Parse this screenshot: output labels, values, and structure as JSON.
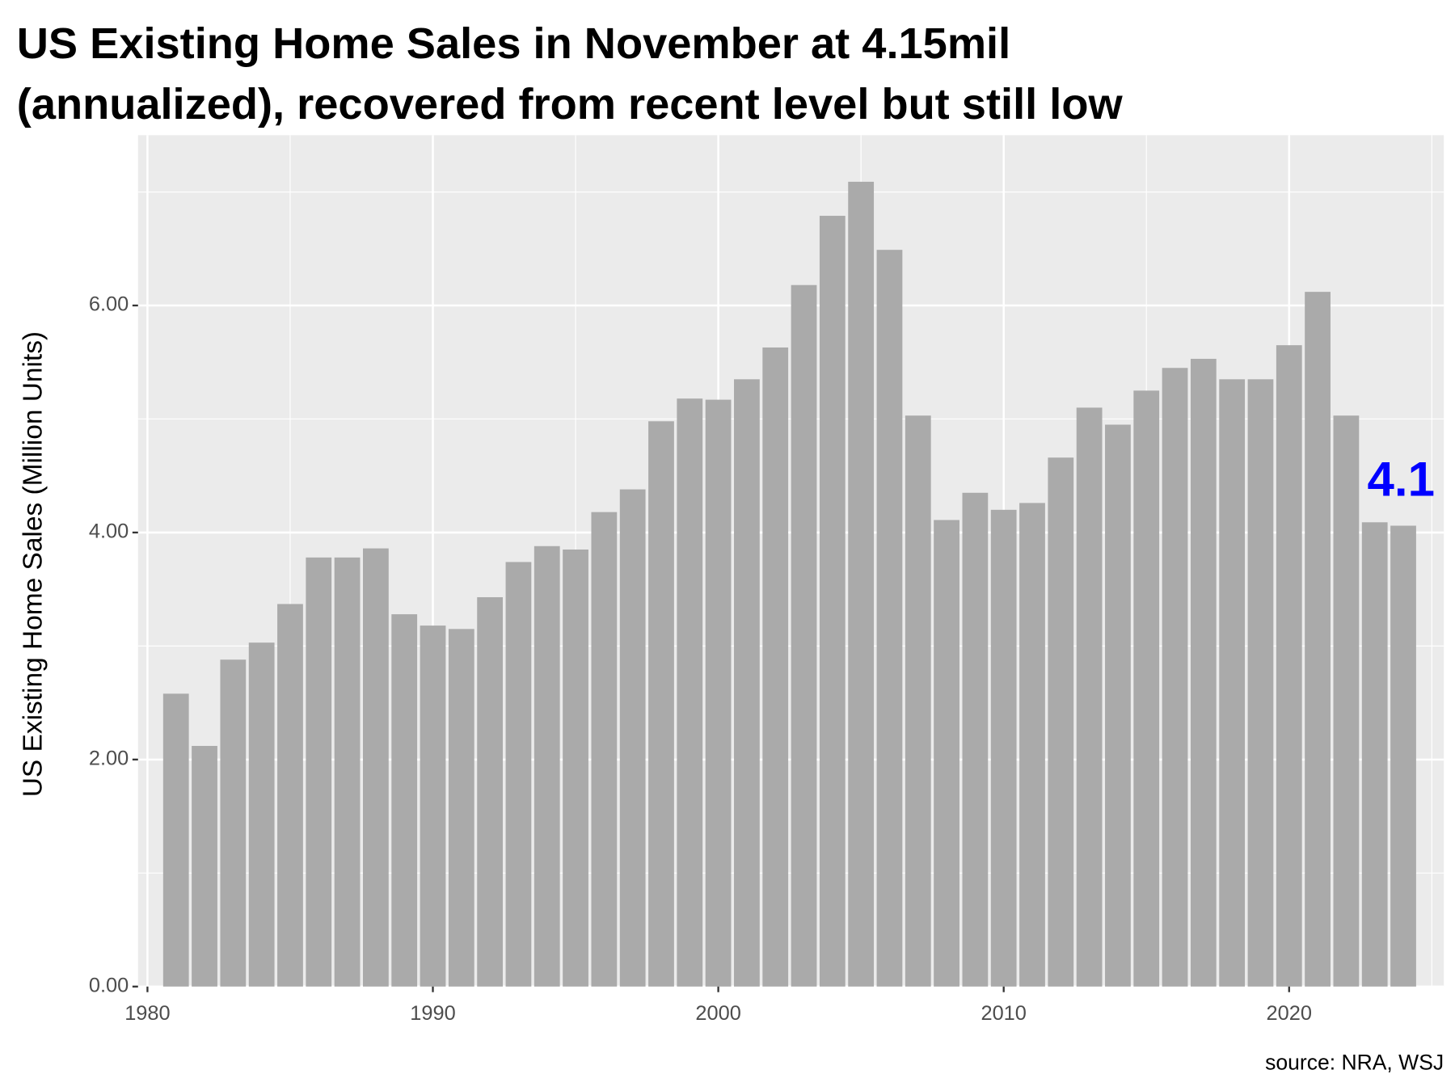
{
  "chart_data": {
    "type": "bar",
    "title": [
      "US Existing Home Sales in November at 4.15mil",
      "(annualized), recovered from recent level but still low"
    ],
    "y_label": "US Existing Home Sales (Million Units)",
    "caption": "source: NRA, WSJ",
    "annotation": "4.1",
    "annotation_color": "#0000ff",
    "color": "#aaaaaa",
    "x": [
      1981,
      1982,
      1983,
      1984,
      1985,
      1986,
      1987,
      1988,
      1989,
      1990,
      1991,
      1992,
      1993,
      1994,
      1995,
      1996,
      1997,
      1998,
      1999,
      2000,
      2001,
      2002,
      2003,
      2004,
      2005,
      2006,
      2007,
      2008,
      2009,
      2010,
      2011,
      2012,
      2013,
      2014,
      2015,
      2016,
      2017,
      2018,
      2019,
      2020,
      2021,
      2022,
      2023,
      2024
    ],
    "values": [
      2.58,
      2.12,
      2.88,
      3.03,
      3.37,
      3.78,
      3.78,
      3.86,
      3.28,
      3.18,
      3.15,
      3.43,
      3.74,
      3.88,
      3.85,
      4.18,
      4.38,
      4.98,
      5.18,
      5.17,
      5.35,
      5.63,
      6.18,
      6.79,
      7.09,
      6.49,
      5.03,
      4.11,
      4.35,
      4.2,
      4.26,
      4.66,
      5.1,
      4.95,
      5.25,
      5.45,
      5.53,
      5.35,
      5.35,
      5.65,
      6.12,
      5.03,
      4.09,
      4.06
    ],
    "xlim": [
      1979.67,
      2025.42
    ],
    "xticks": [
      1980,
      1990,
      2000,
      2010,
      2020
    ],
    "x_minor_ticks": [
      1985,
      1995,
      2005,
      2015,
      2025
    ],
    "ylim": [
      0,
      7.5
    ],
    "yticks": [
      {
        "value": 0,
        "label": "0.00"
      },
      {
        "value": 2,
        "label": "2.00"
      },
      {
        "value": 4,
        "label": "4.00"
      },
      {
        "value": 6,
        "label": "6.00"
      }
    ],
    "y_minor_ticks": [
      1,
      3,
      5,
      7
    ],
    "grid": true
  }
}
